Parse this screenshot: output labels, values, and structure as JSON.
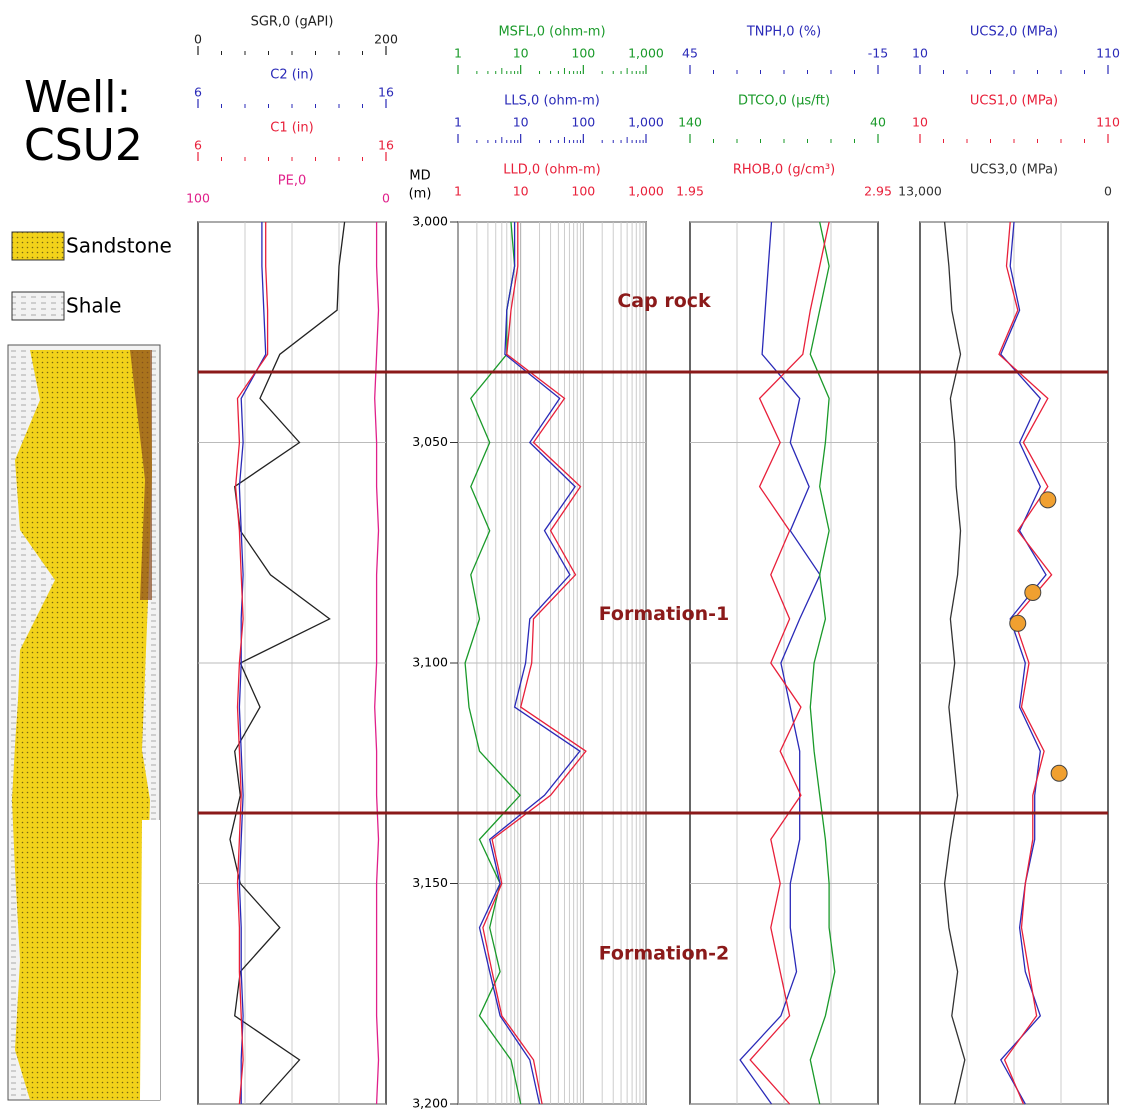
{
  "well": {
    "label": "Well:",
    "name": "CSU2"
  },
  "legend": [
    {
      "name": "Sandstone"
    },
    {
      "name": "Shale"
    }
  ],
  "chart_data": {
    "type": "well-log",
    "depth_label": "MD",
    "depth_unit": "(m)",
    "ylim": [
      3000,
      3200
    ],
    "yticks": [
      {
        "value": 3000,
        "label": "3,000"
      },
      {
        "value": 3050,
        "label": "3,050"
      },
      {
        "value": 3100,
        "label": "3,100"
      },
      {
        "value": 3150,
        "label": "3,150"
      },
      {
        "value": 3200,
        "label": "3,200"
      }
    ],
    "depth": [
      3000,
      3010,
      3020,
      3030,
      3040,
      3050,
      3060,
      3070,
      3080,
      3090,
      3100,
      3110,
      3120,
      3130,
      3140,
      3150,
      3160,
      3170,
      3180,
      3190,
      3200
    ],
    "tops": [
      3034,
      3134
    ],
    "top_color": "#8b1a1a",
    "annotations": [
      {
        "text": "Cap rock",
        "depth": 3018
      },
      {
        "text": "Formation-1",
        "depth": 3089
      },
      {
        "text": "Formation-2",
        "depth": 3166
      }
    ],
    "grid": true,
    "tracks": [
      {
        "curves": [
          {
            "name": "SGR,0 (gAPI)",
            "color": "#222222",
            "log": false,
            "xlim": [
              0,
              200
            ],
            "xticks": [
              0,
              200
            ],
            "values": [
              156,
              150,
              148,
              87,
              66,
              108,
              39,
              45,
              77,
              140,
              45,
              66,
              39,
              45,
              34,
              45,
              87,
              45,
              39,
              108,
              66
            ]
          },
          {
            "name": "C2 (in)",
            "color": "#2a2ab8",
            "log": false,
            "xlim": [
              6,
              16
            ],
            "xticks": [
              6,
              16
            ],
            "values": [
              9.4,
              9.4,
              9.5,
              9.6,
              8.3,
              8.4,
              8.2,
              8.3,
              8.4,
              8.3,
              8.3,
              8.2,
              8.3,
              8.4,
              8.3,
              8.2,
              8.3,
              8.3,
              8.4,
              8.3,
              8.3
            ]
          },
          {
            "name": "C1 (in)",
            "color": "#e8203a",
            "log": false,
            "xlim": [
              6,
              16
            ],
            "xticks": [
              6,
              16
            ],
            "values": [
              9.6,
              9.6,
              9.7,
              9.7,
              8.1,
              8.2,
              8.0,
              8.2,
              8.3,
              8.4,
              8.2,
              8.1,
              8.2,
              8.3,
              8.2,
              8.1,
              8.2,
              8.2,
              8.3,
              8.4,
              8.2
            ]
          },
          {
            "name": "PE,0",
            "color": "#e0208a",
            "log": false,
            "xlim": [
              100,
              0
            ],
            "xticks": [
              100,
              0
            ],
            "values": [
              5,
              5,
              4,
              5,
              6,
              5,
              5,
              4,
              5,
              5,
              5,
              6,
              5,
              5,
              4,
              5,
              5,
              5,
              5,
              4,
              5
            ]
          }
        ]
      },
      {
        "curves": [
          {
            "name": "MSFL,0 (ohm-m)",
            "color": "#1a9a2a",
            "log": true,
            "xlim": [
              1,
              1000
            ],
            "xticks": [
              1,
              10,
              100,
              {
                "value": 1000,
                "label": "1,000"
              }
            ],
            "values": [
              7,
              8,
              6,
              6,
              1.6,
              3.2,
              1.6,
              3.2,
              1.6,
              2.2,
              1.3,
              1.5,
              2.2,
              9.8,
              2.2,
              4.7,
              3.2,
              4.7,
              2.2,
              7,
              10
            ]
          },
          {
            "name": "LLS,0 (ohm-m)",
            "color": "#2a2ab8",
            "log": true,
            "xlim": [
              1,
              1000
            ],
            "xticks": [
              1,
              10,
              100,
              {
                "value": 1000,
                "label": "1,000"
              }
            ],
            "values": [
              8,
              8,
              6,
              5.6,
              42,
              14,
              74,
              24,
              61,
              14,
              12,
              8,
              88,
              24,
              3.2,
              4.7,
              2.2,
              3.2,
              4.7,
              14,
              20
            ]
          },
          {
            "name": "LLD,0 (ohm-m)",
            "color": "#e8203a",
            "log": true,
            "xlim": [
              1,
              1000
            ],
            "xticks": [
              1,
              10,
              100,
              {
                "value": 1000,
                "label": "1,000"
              }
            ],
            "values": [
              9,
              9,
              7,
              6,
              50,
              16,
              90,
              30,
              75,
              16,
              15,
              10,
              110,
              30,
              3.5,
              5,
              2.5,
              3.5,
              5,
              16,
              22
            ]
          }
        ]
      },
      {
        "curves": [
          {
            "name": "TNPH,0 (%)",
            "color": "#2a2ab8",
            "log": false,
            "xlim": [
              45,
              -15
            ],
            "xticks": [
              45,
              -15
            ],
            "values": [
              19,
              20,
              21,
              22,
              10,
              13,
              7,
              13,
              3.5,
              10,
              16,
              13,
              10,
              10,
              10,
              13,
              13,
              11,
              16,
              29,
              19
            ]
          },
          {
            "name": "DTCO,0 (µs/ft)",
            "color": "#1a9a2a",
            "log": false,
            "xlim": [
              140,
              40
            ],
            "xticks": [
              140,
              40
            ],
            "values": [
              71,
              66,
              71,
              76,
              66,
              68,
              71,
              66,
              71,
              68,
              74,
              76,
              74,
              71,
              68,
              66,
              66,
              63,
              68,
              76,
              71
            ]
          },
          {
            "name": "RHOB,0 (g/cm³)",
            "color": "#e8203a",
            "log": false,
            "xlim": [
              1.95,
              2.95
            ],
            "xticks": [
              1.95,
              2.95
            ],
            "values": [
              2.69,
              2.64,
              2.59,
              2.55,
              2.32,
              2.43,
              2.32,
              2.48,
              2.38,
              2.48,
              2.38,
              2.54,
              2.43,
              2.54,
              2.38,
              2.43,
              2.38,
              2.43,
              2.48,
              2.27,
              2.48
            ]
          }
        ]
      },
      {
        "curves": [
          {
            "name": "UCS2,0 (MPa)",
            "color": "#2a2ab8",
            "log": false,
            "xlim": [
              10,
              110
            ],
            "xticks": [
              10,
              110
            ],
            "values": [
              60,
              58,
              63,
              53,
              74,
              63,
              74,
              63,
              77,
              58,
              66,
              63,
              74,
              71,
              71,
              66,
              63,
              66,
              74,
              53,
              66
            ]
          },
          {
            "name": "UCS1,0 (MPa)",
            "color": "#e8203a",
            "log": false,
            "xlim": [
              10,
              110
            ],
            "xticks": [
              10,
              110
            ],
            "values": [
              58,
              56,
              62,
              52,
              78,
              65,
              78,
              62,
              80,
              60,
              68,
              64,
              76,
              70,
              70,
              66,
              64,
              68,
              72,
              55,
              65
            ]
          },
          {
            "name": "UCS3,0 (MPa)",
            "color": "#333333",
            "log": false,
            "xlim": [
              13000,
              0
            ],
            "xticks": [
              {
                "value": 13000,
                "label": "13,000"
              },
              0
            ],
            "values": [
              11300,
              11000,
              10800,
              10200,
              10900,
              10600,
              10500,
              10200,
              10400,
              10900,
              10600,
              11000,
              10700,
              10400,
              10900,
              11300,
              11000,
              10400,
              10800,
              9900,
              10600
            ]
          }
        ],
        "points": {
          "curve": 1,
          "color": "#f0a030",
          "depth": [
            3063,
            3084,
            3091,
            3125
          ],
          "values": [
            78,
            70,
            62,
            84
          ]
        }
      }
    ]
  }
}
